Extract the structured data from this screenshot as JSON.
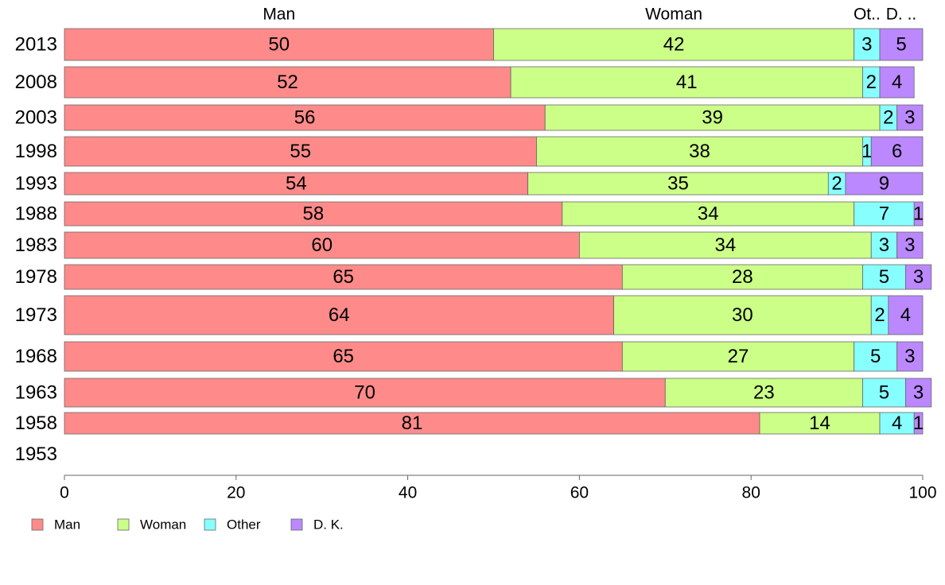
{
  "chart_data": {
    "type": "bar",
    "orientation": "horizontal",
    "stacked": true,
    "categories": [
      "2013",
      "2008",
      "2003",
      "1998",
      "1993",
      "1988",
      "1983",
      "1978",
      "1973",
      "1968",
      "1963",
      "1958",
      "1953"
    ],
    "series": [
      {
        "name": "Man",
        "color": "#ff8a8a",
        "values": [
          50,
          52,
          56,
          55,
          54,
          58,
          60,
          65,
          64,
          65,
          70,
          81,
          null
        ]
      },
      {
        "name": "Woman",
        "color": "#ccff88",
        "values": [
          42,
          41,
          39,
          38,
          35,
          34,
          34,
          28,
          30,
          27,
          23,
          14,
          null
        ]
      },
      {
        "name": "Other",
        "color": "#88ffff",
        "values": [
          3,
          2,
          2,
          1,
          2,
          7,
          3,
          5,
          2,
          5,
          5,
          4,
          null
        ]
      },
      {
        "name": "D. K.",
        "color": "#bb88ff",
        "values": [
          5,
          4,
          3,
          6,
          9,
          1,
          3,
          3,
          4,
          3,
          3,
          1,
          null
        ]
      }
    ],
    "column_headers": [
      "Man",
      "Woman",
      "Ot..",
      "D. .."
    ],
    "xlim": [
      0,
      100
    ],
    "xticks": [
      0,
      20,
      40,
      60,
      80,
      100
    ],
    "grid": false,
    "legend_position": "bottom-left"
  }
}
